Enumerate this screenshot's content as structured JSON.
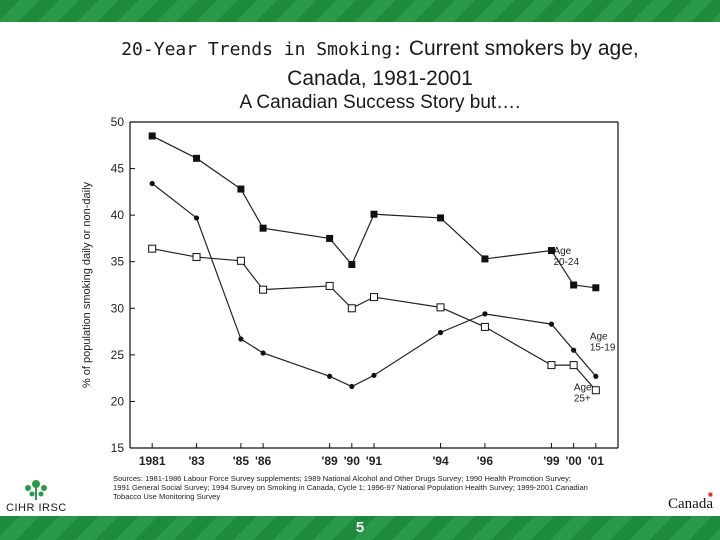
{
  "slide": {
    "title_part1": "20-Year Trends in Smoking:",
    "title_part2": "Current smokers by age,",
    "title_line2": "Canada, 1981-2001",
    "subtitle": "A Canadian Success Story but….",
    "slide_number": "5",
    "sources_line1": "Sources: 1981-1986 Labour Force Survey supplements; 1989 National Alcohol and Other Drugs Survey; 1990 Health Promotion Survey;",
    "sources_line2": "1991 General Social Survey; 1994 Survey on Smoking in Canada, Cycle 1; 1996-97 National Population Health Survey; 1999-2001 Canadian",
    "sources_line3": "Tobacco Use Monitoring Survey",
    "logo_left_text": "CIHR IRSC",
    "logo_right_text": "Canada"
  },
  "colors": {
    "band": "#1d8a3c",
    "ink": "#1a1a1a"
  },
  "chart_data": {
    "type": "line",
    "ylabel": "% of population smoking daily or non-daily",
    "xlabel": "",
    "ylim": [
      15,
      50
    ],
    "yticks": [
      15,
      20,
      25,
      30,
      35,
      40,
      45,
      50
    ],
    "grid": false,
    "tick_labels": [
      "1981",
      "'83",
      "'85",
      "'86",
      "'89",
      "'90",
      "'91",
      "'94",
      "'96",
      "'99",
      "'00",
      "'01"
    ],
    "series": [
      {
        "name": "Age 20-24",
        "marker": "filled-square",
        "x": [
          1981,
          1983,
          1985,
          1986,
          1989,
          1990,
          1991,
          1994,
          1996,
          1999,
          2000,
          2001
        ],
        "values": [
          48.5,
          46.1,
          42.8,
          38.6,
          37.5,
          34.7,
          40.1,
          39.7,
          35.3,
          36.2,
          32.5,
          32.2
        ]
      },
      {
        "name": "Age 15-19",
        "marker": "filled-circle",
        "x": [
          1981,
          1983,
          1985,
          1986,
          1989,
          1990,
          1991,
          1994,
          1996,
          1999,
          2000,
          2001
        ],
        "values": [
          43.4,
          39.7,
          26.7,
          25.2,
          22.7,
          21.6,
          22.8,
          27.4,
          29.4,
          28.3,
          25.5,
          22.7
        ]
      },
      {
        "name": "Age 25+",
        "marker": "open-square",
        "x": [
          1981,
          1983,
          1985,
          1986,
          1989,
          1990,
          1991,
          1994,
          1996,
          1999,
          2000,
          2001
        ],
        "values": [
          36.4,
          35.5,
          35.1,
          32.0,
          32.4,
          30.0,
          31.2,
          30.1,
          28.0,
          23.9,
          23.9,
          21.2
        ]
      }
    ],
    "annotations": [
      {
        "series": "Age 20-24",
        "line1": "Age",
        "line2": "20-24"
      },
      {
        "series": "Age 15-19",
        "line1": "Age",
        "line2": "15-19"
      },
      {
        "series": "Age 25+",
        "line1": "Age",
        "line2": "25+"
      }
    ]
  }
}
